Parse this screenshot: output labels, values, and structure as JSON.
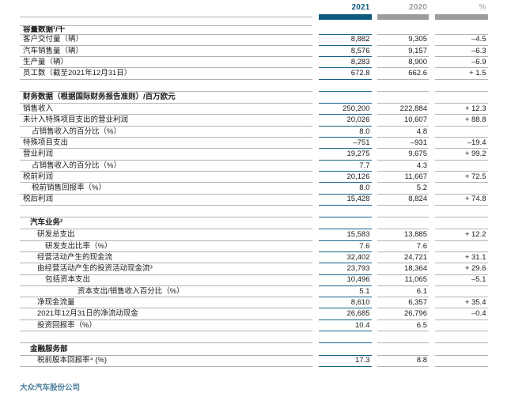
{
  "header": {
    "columns": [
      {
        "label": "2021",
        "color": "#0e5a7d"
      },
      {
        "label": "2020",
        "color": "#9c9c9c"
      },
      {
        "label": "%",
        "color": "#9c9c9c"
      }
    ]
  },
  "colors": {
    "accent_teal": "#0e5a7d",
    "rule_teal": "#15638a",
    "bar_gray": "#9c9c9c",
    "rule_gray": "#b2b2b2",
    "footer_text": "#4e7f9d"
  },
  "table": {
    "rows": [
      {
        "type": "header1",
        "indent": 0,
        "label": "容量数据¹/千",
        "v2021": "",
        "v2020": "",
        "pct": ""
      },
      {
        "type": "data",
        "indent": 0,
        "label": "客户交付量（辆）",
        "v2021": "8,882",
        "v2020": "9,305",
        "pct": "–4.5"
      },
      {
        "type": "data",
        "indent": 0,
        "label": "汽车销售量（辆）",
        "v2021": "8,576",
        "v2020": "9,157",
        "pct": "–6.3"
      },
      {
        "type": "data",
        "indent": 0,
        "label": "生产量（辆）",
        "v2021": "8,283",
        "v2020": "8,900",
        "pct": "–6.9"
      },
      {
        "type": "data",
        "indent": 0,
        "label": "员工数（截至2021年12月31日）",
        "v2021": "672.8",
        "v2020": "662.6",
        "pct": "+ 1.5"
      },
      {
        "type": "close",
        "indent": 0,
        "label": "",
        "v2021": "",
        "v2020": "",
        "pct": ""
      },
      {
        "type": "header",
        "indent": 0,
        "label": "财务数据（根据国际财务报告准则）/百万欧元",
        "v2021": "",
        "v2020": "",
        "pct": ""
      },
      {
        "type": "data",
        "indent": 0,
        "label": "销售收入",
        "v2021": "250,200",
        "v2020": "222,884",
        "pct": "+ 12.3"
      },
      {
        "type": "data",
        "indent": 0,
        "label": "未计入特殊项目支出的营业利润",
        "v2021": "20,026",
        "v2020": "10,607",
        "pct": "+ 88.8"
      },
      {
        "type": "data",
        "indent": 1,
        "label": "占销售收入的百分比（%）",
        "v2021": "8.0",
        "v2020": "4.8",
        "pct": ""
      },
      {
        "type": "data",
        "indent": 0,
        "label": "特殊项目支出",
        "v2021": "–751",
        "v2020": "–931",
        "pct": "–19.4"
      },
      {
        "type": "data",
        "indent": 0,
        "label": "营业利润",
        "v2021": "19,275",
        "v2020": "9,675",
        "pct": "+ 99.2"
      },
      {
        "type": "data",
        "indent": 1,
        "label": "占销售收入的百分比（%）",
        "v2021": "7.7",
        "v2020": "4.3",
        "pct": ""
      },
      {
        "type": "data",
        "indent": 0,
        "label": "税前利润",
        "v2021": "20,126",
        "v2020": "11,667",
        "pct": "+ 72.5"
      },
      {
        "type": "data",
        "indent": 1,
        "label": "税前销售回报率（%）",
        "v2021": "8.0",
        "v2020": "5.2",
        "pct": ""
      },
      {
        "type": "data",
        "indent": 0,
        "label": "税后利润",
        "v2021": "15,428",
        "v2020": "8,824",
        "pct": "+ 74.8"
      },
      {
        "type": "close",
        "indent": 0,
        "label": "",
        "v2021": "",
        "v2020": "",
        "pct": ""
      },
      {
        "type": "header",
        "indent": 2,
        "label": "汽车业务²",
        "v2021": "",
        "v2020": "",
        "pct": ""
      },
      {
        "type": "data",
        "indent": 3,
        "label": "研发总支出",
        "v2021": "15,583",
        "v2020": "13,885",
        "pct": "+ 12.2"
      },
      {
        "type": "data",
        "indent": 4,
        "label": "研发支出比率（%）",
        "v2021": "7.6",
        "v2020": "7.6",
        "pct": ""
      },
      {
        "type": "data",
        "indent": 3,
        "label": "经营活动产生的现金流",
        "v2021": "32,402",
        "v2020": "24,721",
        "pct": "+ 31.1"
      },
      {
        "type": "data",
        "indent": 3,
        "label": "由经营活动产生的投资活动现金流³",
        "v2021": "23,793",
        "v2020": "18,364",
        "pct": "+ 29.6"
      },
      {
        "type": "data",
        "indent": 4,
        "label": "包括资本支出",
        "v2021": "10,496",
        "v2020": "11,065",
        "pct": "–5.1"
      },
      {
        "type": "data",
        "indent": 5,
        "label": "资本支出/销售收入百分比（%）",
        "v2021": "5.1",
        "v2020": "6.1",
        "pct": ""
      },
      {
        "type": "data",
        "indent": 3,
        "label": "净现金流量",
        "v2021": "8,610",
        "v2020": "6,357",
        "pct": "+ 35.4"
      },
      {
        "type": "data",
        "indent": 3,
        "label": "2021年12月31日的净流动现金",
        "v2021": "26,685",
        "v2020": "26,796",
        "pct": "–0.4"
      },
      {
        "type": "data",
        "indent": 3,
        "label": "投资回报率（%）",
        "v2021": "10.4",
        "v2020": "6.5",
        "pct": ""
      },
      {
        "type": "close",
        "indent": 0,
        "label": "",
        "v2021": "",
        "v2020": "",
        "pct": ""
      },
      {
        "type": "header",
        "indent": 2,
        "label": "金融服务部",
        "v2021": "",
        "v2020": "",
        "pct": ""
      },
      {
        "type": "data",
        "indent": 3,
        "label": "税前股本回报率⁴ (%)",
        "v2021": "17.3",
        "v2020": "8.8",
        "pct": ""
      },
      {
        "type": "close final",
        "indent": 0,
        "label": "",
        "v2021": "",
        "v2020": "",
        "pct": ""
      }
    ]
  },
  "footer": {
    "company": "大众汽车股份公司"
  }
}
